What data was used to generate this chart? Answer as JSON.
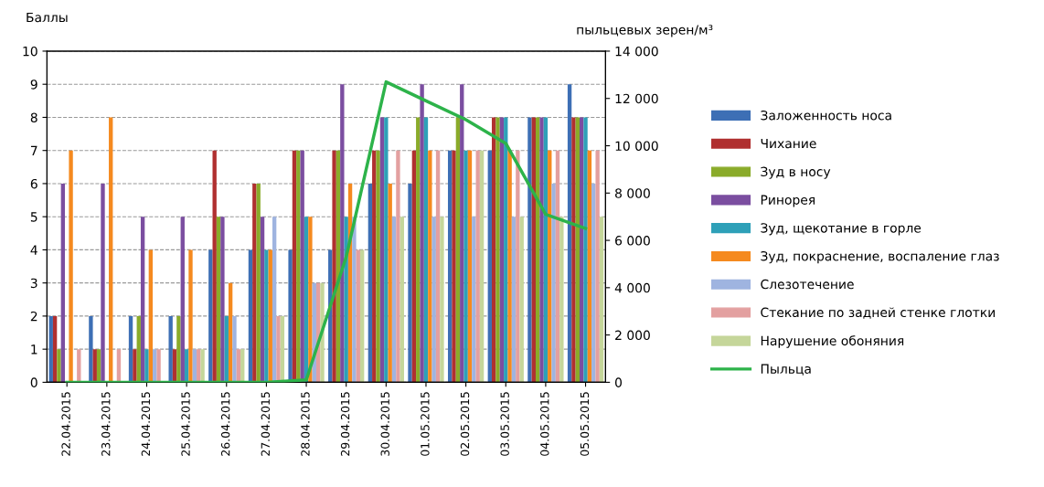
{
  "chart_data": {
    "type": "bar",
    "ylabel": "Баллы",
    "y2label": "пыльцевых зерен/м³",
    "categories": [
      "22.04.2015",
      "23.04.2015",
      "24.04.2015",
      "25.04.2015",
      "26.04.2015",
      "27.04.2015",
      "28.04.2015",
      "29.04.2015",
      "30.04.2015",
      "01.05.2015",
      "02.05.2015",
      "03.05.2015",
      "04.05.2015",
      "05.05.2015"
    ],
    "series": [
      {
        "name": "Заложенность носа",
        "color": "#3d6fb5",
        "values": [
          2,
          2,
          2,
          2,
          4,
          4,
          4,
          4,
          6,
          6,
          7,
          7,
          8,
          9
        ]
      },
      {
        "name": "Чихание",
        "color": "#b03030",
        "values": [
          2,
          1,
          1,
          1,
          7,
          6,
          7,
          7,
          7,
          7,
          7,
          8,
          8,
          8
        ]
      },
      {
        "name": "Зуд в носу",
        "color": "#8aab2a",
        "values": [
          1,
          1,
          2,
          2,
          5,
          6,
          7,
          7,
          7,
          8,
          8,
          8,
          8,
          8
        ]
      },
      {
        "name": "Ринорея",
        "color": "#7b4ea0",
        "values": [
          6,
          6,
          5,
          5,
          5,
          5,
          7,
          9,
          8,
          9,
          9,
          8,
          8,
          8
        ]
      },
      {
        "name": "Зуд, щекотание в горле",
        "color": "#2ea0b8",
        "values": [
          0,
          0,
          1,
          1,
          2,
          4,
          5,
          5,
          8,
          8,
          7,
          8,
          8,
          8
        ]
      },
      {
        "name": "Зуд, покраснение, воспаление глаз",
        "color": "#f58a1f",
        "values": [
          7,
          8,
          4,
          4,
          3,
          4,
          5,
          6,
          6,
          7,
          7,
          7,
          7,
          7
        ]
      },
      {
        "name": "Слезотечение",
        "color": "#9fb4e0",
        "values": [
          0,
          0,
          1,
          1,
          2,
          5,
          3,
          5,
          5,
          5,
          5,
          5,
          6,
          6
        ]
      },
      {
        "name": "Стекание по задней стенке глотки",
        "color": "#e3a0a0",
        "values": [
          1,
          1,
          1,
          1,
          1,
          2,
          3,
          4,
          7,
          7,
          7,
          7,
          7,
          7
        ]
      },
      {
        "name": "Нарушение обоняния",
        "color": "#c5d69a",
        "values": [
          0,
          0,
          0,
          1,
          1,
          2,
          3,
          4,
          5,
          5,
          7,
          5,
          5,
          5
        ]
      },
      {
        "name": "Пыльца",
        "type": "line",
        "axis": "y2",
        "color": "#2db34a",
        "values": [
          0,
          0,
          0,
          0,
          0,
          0,
          100,
          5300,
          12700,
          11900,
          11100,
          10100,
          7100,
          6500
        ]
      }
    ],
    "ylim": [
      0,
      10
    ],
    "yticks": [
      0,
      1,
      2,
      3,
      4,
      5,
      6,
      7,
      8,
      9,
      10
    ],
    "y2lim": [
      0,
      14000
    ],
    "y2ticks": [
      {
        "value": 0,
        "label": "0"
      },
      {
        "value": 2000,
        "label": "2 000"
      },
      {
        "value": 4000,
        "label": "4 000"
      },
      {
        "value": 6000,
        "label": "6 000"
      },
      {
        "value": 8000,
        "label": "8 000"
      },
      {
        "value": 10000,
        "label": "10 000"
      },
      {
        "value": 12000,
        "label": "12 000"
      },
      {
        "value": 14000,
        "label": "14 000"
      }
    ],
    "grid": "y",
    "legend": "right"
  }
}
